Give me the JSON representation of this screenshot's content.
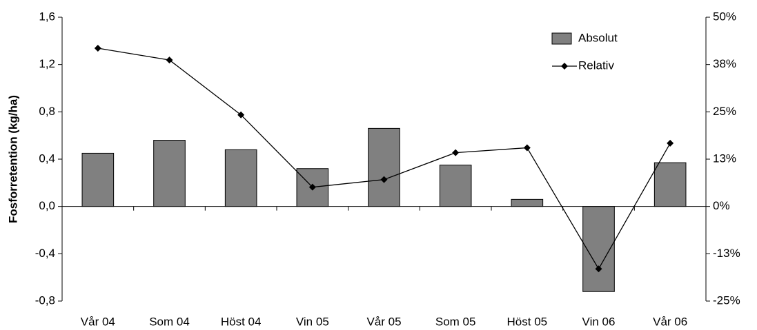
{
  "chart_data": {
    "type": "bar",
    "y_label": "Fosforretention (kg/ha)",
    "categories": [
      "Vår 04",
      "Som 04",
      "Höst 04",
      "Vin 05",
      "Vår 05",
      "Som 05",
      "Höst 05",
      "Vin 06",
      "Vår 06"
    ],
    "series": [
      {
        "name": "Absolut",
        "type": "bar",
        "color": "#808080",
        "values": [
          0.45,
          0.56,
          0.48,
          0.32,
          0.66,
          0.35,
          0.06,
          -0.72,
          0.37
        ]
      },
      {
        "name": "Relativ",
        "type": "line",
        "axis": "y2",
        "color": "#000000",
        "values": [
          41.8,
          38.7,
          24.2,
          5.1,
          7.1,
          14.2,
          15.5,
          -16.5,
          16.7
        ]
      }
    ],
    "ylim": [
      -0.8,
      1.6
    ],
    "yticks": [
      {
        "value": -0.8,
        "label": "-0,8"
      },
      {
        "value": -0.4,
        "label": "-0,4"
      },
      {
        "value": 0,
        "label": "0,0"
      },
      {
        "value": 0.4,
        "label": "0,4"
      },
      {
        "value": 0.8,
        "label": "0,8"
      },
      {
        "value": 1.2,
        "label": "1,2"
      },
      {
        "value": 1.6,
        "label": "1,6"
      }
    ],
    "y2lim": [
      -25,
      50
    ],
    "y2ticks": [
      {
        "value": -25,
        "label": "-25%"
      },
      {
        "value": -12.5,
        "label": "-13%"
      },
      {
        "value": 0,
        "label": "0%"
      },
      {
        "value": 12.5,
        "label": "13%"
      },
      {
        "value": 25,
        "label": "25%"
      },
      {
        "value": 37.5,
        "label": "38%"
      },
      {
        "value": 50,
        "label": "50%"
      }
    ],
    "legend_position": "upper right",
    "grid": false
  }
}
